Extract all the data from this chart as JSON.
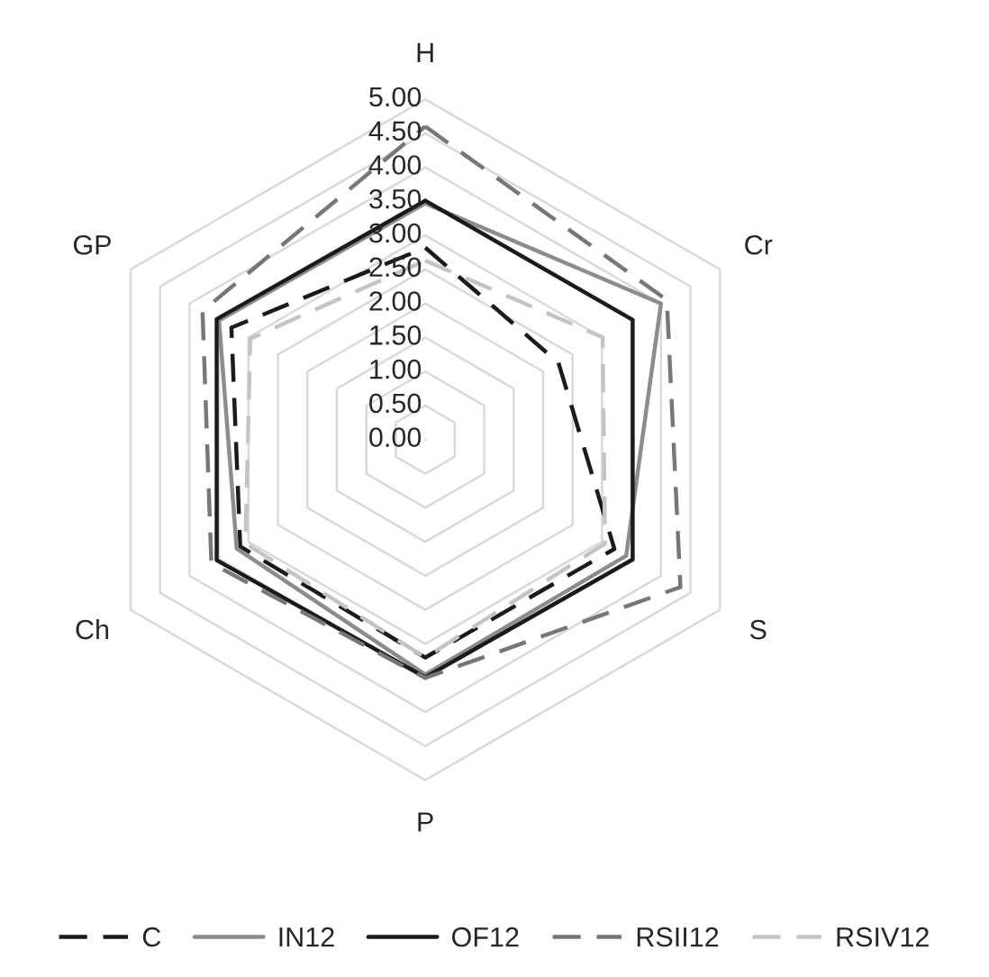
{
  "chart_data": {
    "type": "radar",
    "categories": [
      "H",
      "Cr",
      "S",
      "P",
      "Ch",
      "GP"
    ],
    "ylim": [
      0,
      5
    ],
    "yticks": [
      {
        "value": 0,
        "label": "0.00"
      },
      {
        "value": 0.5,
        "label": "0.50"
      },
      {
        "value": 1,
        "label": "1.00"
      },
      {
        "value": 1.5,
        "label": "1.50"
      },
      {
        "value": 2,
        "label": "2.00"
      },
      {
        "value": 2.5,
        "label": "2.50"
      },
      {
        "value": 3,
        "label": "3.00"
      },
      {
        "value": 3.5,
        "label": "3.50"
      },
      {
        "value": 4,
        "label": "4.00"
      },
      {
        "value": 4.5,
        "label": "4.50"
      },
      {
        "value": 5,
        "label": "5.00"
      }
    ],
    "grid": true,
    "legend": "bottom",
    "series": [
      {
        "name": "C",
        "color": "#1a1a1a",
        "line_style": "dashed",
        "values": [
          2.82,
          2.26,
          3.21,
          3.2,
          3.14,
          3.29
        ]
      },
      {
        "name": "IN12",
        "color": "#8c8c8c",
        "line_style": "solid",
        "values": [
          3.47,
          4.0,
          3.41,
          3.45,
          3.2,
          3.5
        ]
      },
      {
        "name": "OF12",
        "color": "#1a1a1a",
        "line_style": "solid",
        "values": [
          3.51,
          3.52,
          3.52,
          3.49,
          3.54,
          3.54
        ]
      },
      {
        "name": "RSII12",
        "color": "#777777",
        "line_style": "dashed",
        "values": [
          4.6,
          4.1,
          4.33,
          3.5,
          3.63,
          3.78
        ]
      },
      {
        "name": "RSIV12",
        "color": "#c4c4c4",
        "line_style": "dashed",
        "values": [
          2.63,
          3.01,
          3.05,
          3.2,
          3.05,
          2.97
        ]
      }
    ]
  }
}
